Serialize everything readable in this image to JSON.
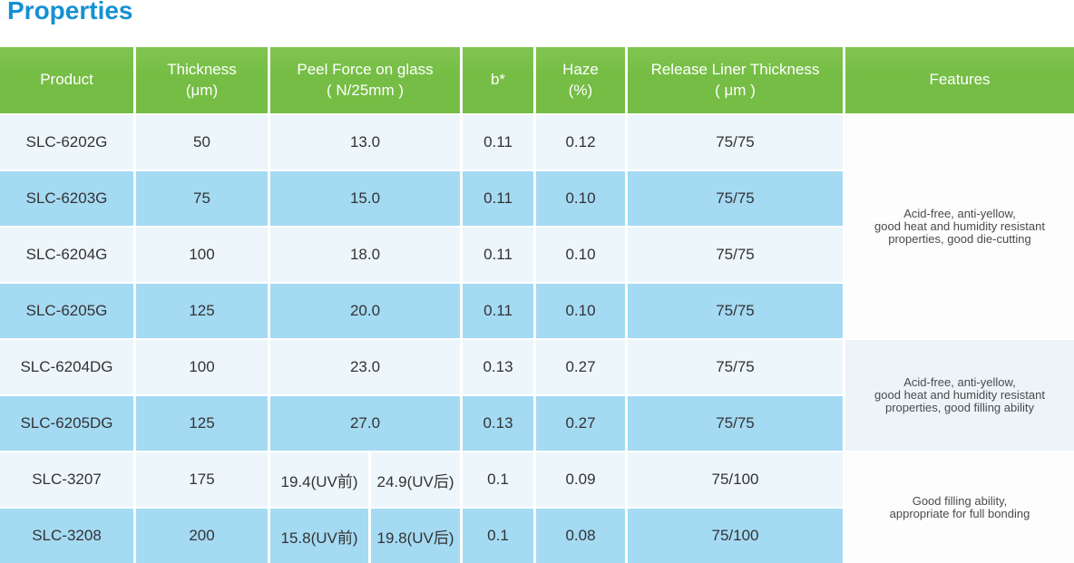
{
  "title": {
    "text": "Properties"
  },
  "colors": {
    "title": "#1591d2",
    "header_bg": "#75bd44",
    "header_bg_top": "#80c551",
    "header_text": "#ffffff",
    "row_light_bg": "#edf6fa",
    "row_blue_bg": "#a5daf3",
    "features_light_bg": "#fdfdfd",
    "features_blue_bg": "#ecf4f9",
    "cell_text": "#333333",
    "features_text": "#4a4a4a"
  },
  "table": {
    "columns": [
      {
        "id": "product",
        "label_lines": [
          "Product"
        ]
      },
      {
        "id": "thickness",
        "label_lines": [
          "Thickness",
          "(μm)"
        ]
      },
      {
        "id": "peel-force",
        "label_lines": [
          "Peel Force on glass",
          "( N/25mm )"
        ]
      },
      {
        "id": "b-star",
        "label_lines": [
          "b*"
        ]
      },
      {
        "id": "haze",
        "label_lines": [
          "Haze",
          "(%)"
        ]
      },
      {
        "id": "release-liner-thickness",
        "label_lines": [
          "Release Liner Thickness",
          "( μm )"
        ]
      },
      {
        "id": "features",
        "label_lines": [
          "Features"
        ]
      }
    ],
    "rows": [
      {
        "product": "SLC-6202G",
        "thickness": "50",
        "peel": [
          "13.0"
        ],
        "b_star": "0.11",
        "haze": "0.12",
        "release_liner": "75/75"
      },
      {
        "product": "SLC-6203G",
        "thickness": "75",
        "peel": [
          "15.0"
        ],
        "b_star": "0.11",
        "haze": "0.10",
        "release_liner": "75/75"
      },
      {
        "product": "SLC-6204G",
        "thickness": "100",
        "peel": [
          "18.0"
        ],
        "b_star": "0.11",
        "haze": "0.10",
        "release_liner": "75/75"
      },
      {
        "product": "SLC-6205G",
        "thickness": "125",
        "peel": [
          "20.0"
        ],
        "b_star": "0.11",
        "haze": "0.10",
        "release_liner": "75/75"
      },
      {
        "product": "SLC-6204DG",
        "thickness": "100",
        "peel": [
          "23.0"
        ],
        "b_star": "0.13",
        "haze": "0.27",
        "release_liner": "75/75"
      },
      {
        "product": "SLC-6205DG",
        "thickness": "125",
        "peel": [
          "27.0"
        ],
        "b_star": "0.13",
        "haze": "0.27",
        "release_liner": "75/75"
      },
      {
        "product": "SLC-3207",
        "thickness": "175",
        "peel": [
          "19.4(UV前)",
          "24.9(UV后)"
        ],
        "b_star": "0.1",
        "haze": "0.09",
        "release_liner": "75/100"
      },
      {
        "product": "SLC-3208",
        "thickness": "200",
        "peel": [
          "15.8(UV前)",
          "19.8(UV后)"
        ],
        "b_star": "0.1",
        "haze": "0.08",
        "release_liner": "75/100"
      }
    ],
    "features_groups": [
      {
        "row_start": 1,
        "row_end": 4,
        "lines": [
          "Acid-free, anti-yellow,",
          "good heat and humidity resistant",
          "properties, good die-cutting"
        ]
      },
      {
        "row_start": 5,
        "row_end": 6,
        "lines": [
          "Acid-free, anti-yellow,",
          "good heat and humidity resistant",
          "properties, good filling ability"
        ]
      },
      {
        "row_start": 7,
        "row_end": 8,
        "lines": [
          "Good filling ability,",
          "appropriate for full bonding"
        ]
      }
    ]
  }
}
